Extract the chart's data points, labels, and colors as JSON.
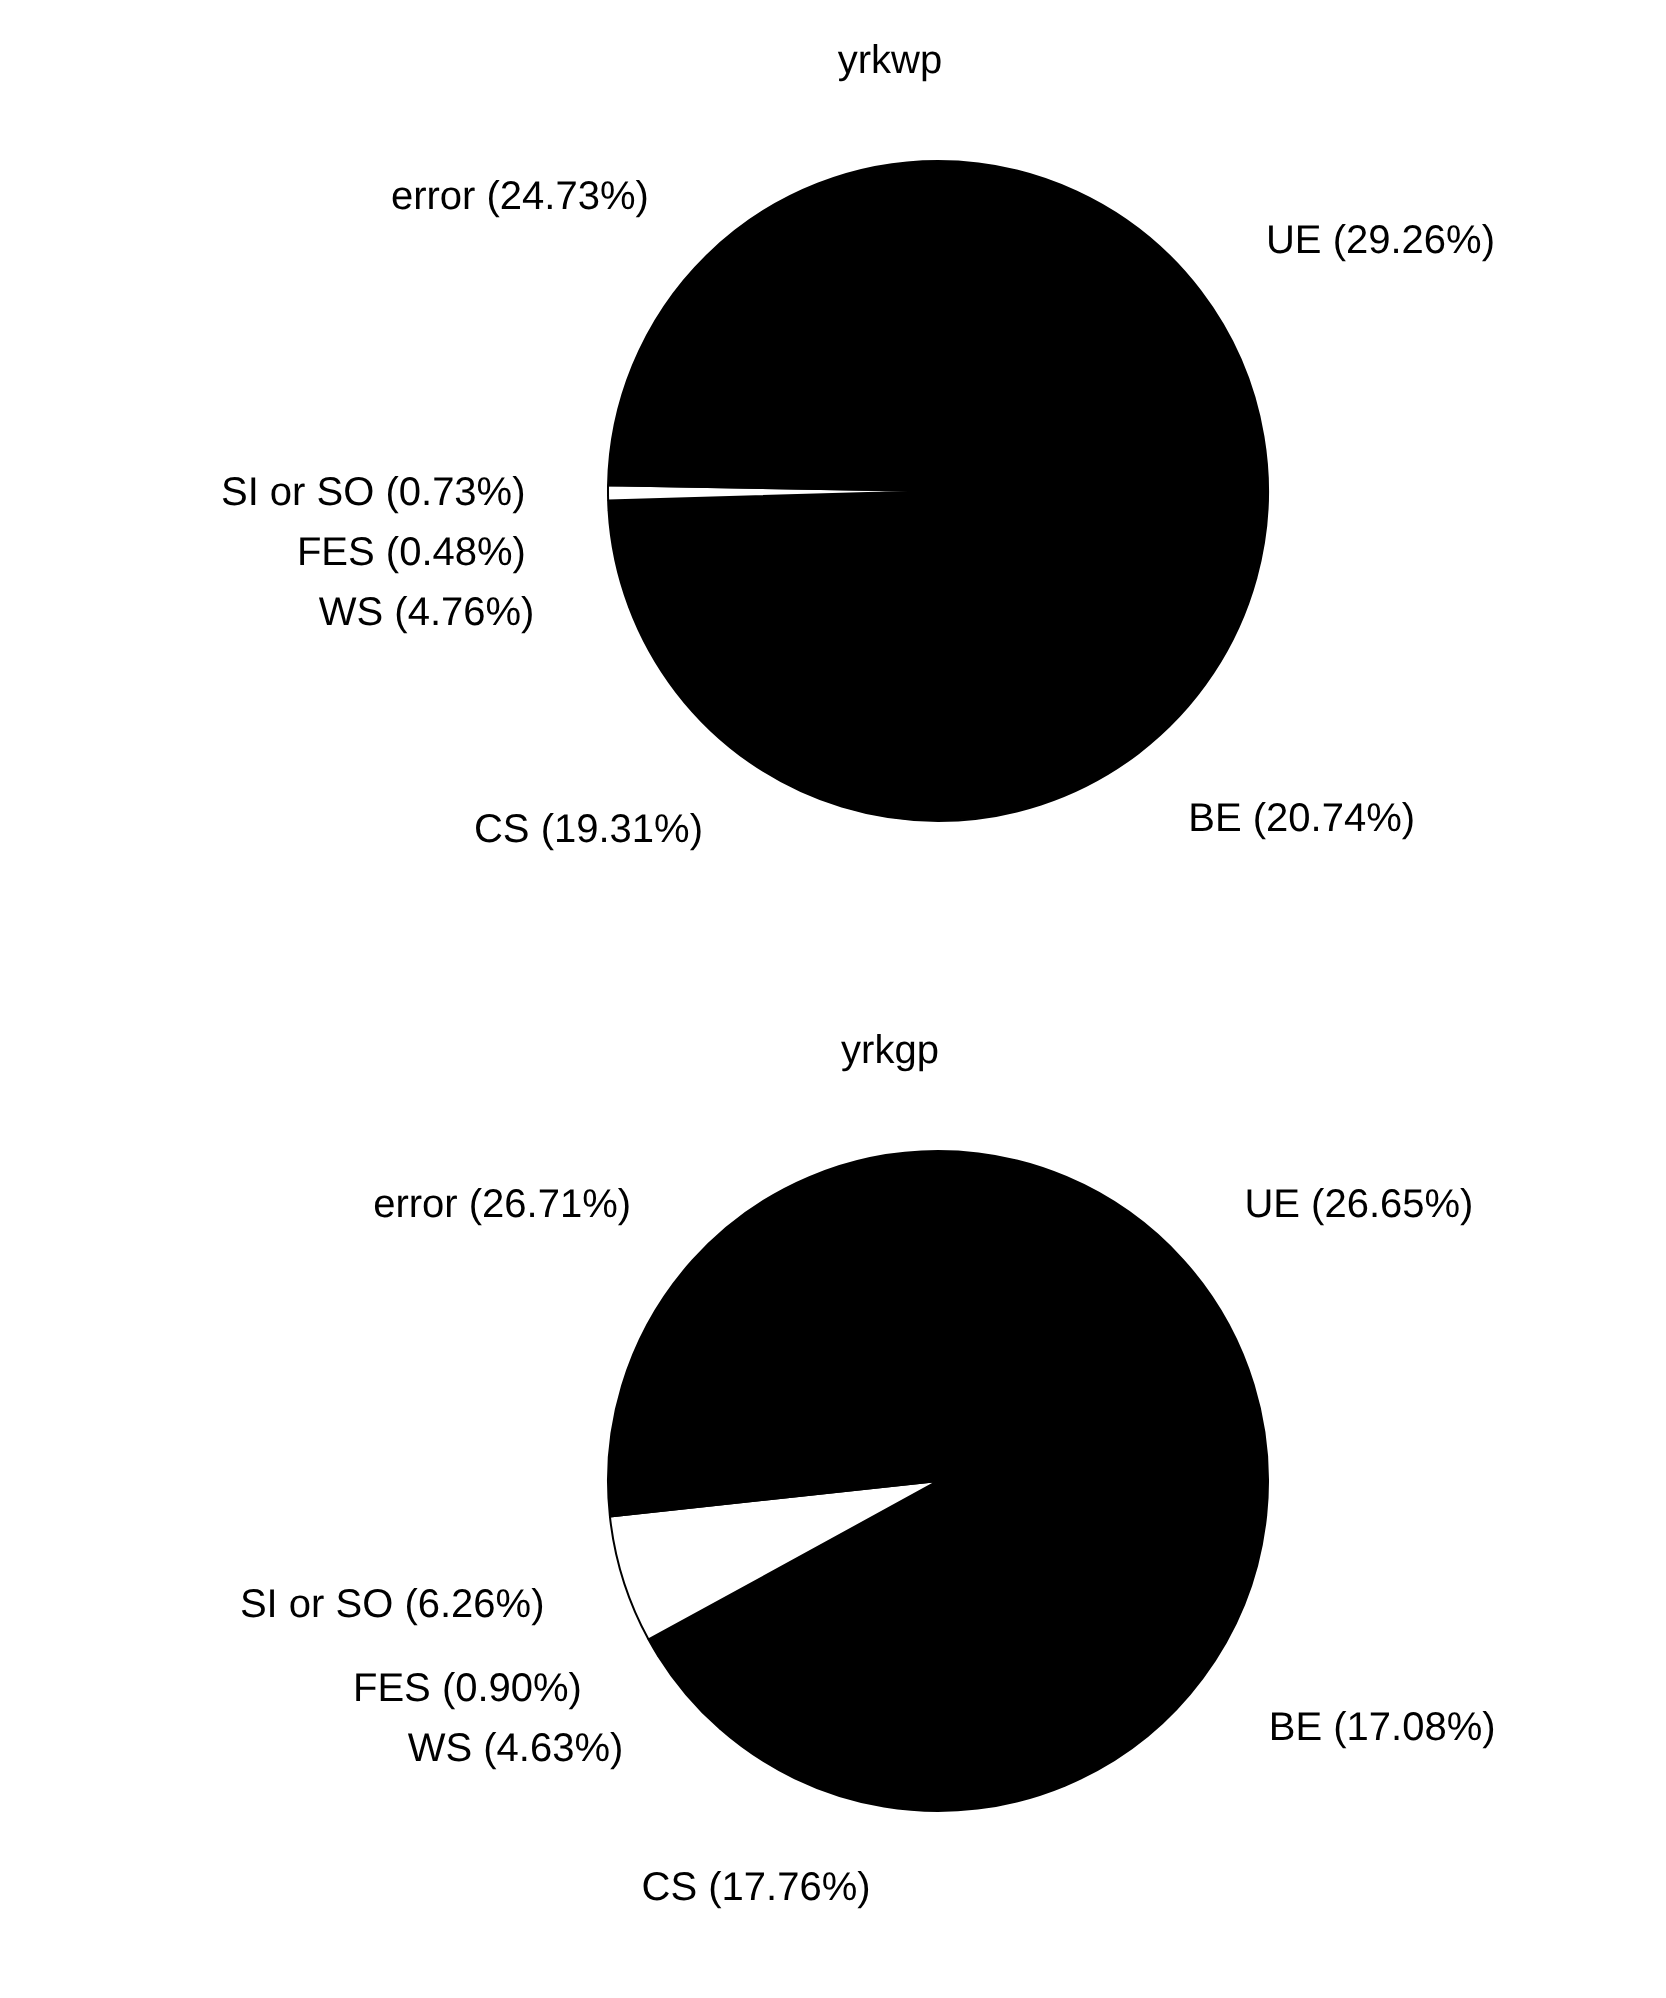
{
  "chart_data": [
    {
      "type": "pie",
      "title": "yrkwp",
      "categories": [
        "UE",
        "BE",
        "CS",
        "WS",
        "FES",
        "SI or SO",
        "error"
      ],
      "values": [
        29.26,
        20.74,
        19.31,
        4.76,
        0.48,
        0.73,
        24.73
      ],
      "colors": [
        "#000000",
        "#000000",
        "#000000",
        "#000000",
        "#000000",
        "#ffffff",
        "#000000"
      ],
      "value_labels": [
        "(29.26%)",
        "(20.74%)",
        "(19.31%)",
        "(4.76%)",
        "(0.48%)",
        "(0.73%)",
        "(24.73%)"
      ]
    },
    {
      "type": "pie",
      "title": "yrkgp",
      "categories": [
        "UE",
        "BE",
        "CS",
        "WS",
        "FES",
        "SI or SO",
        "error"
      ],
      "values": [
        26.65,
        17.08,
        17.76,
        4.63,
        0.9,
        6.26,
        26.71
      ],
      "colors": [
        "#000000",
        "#000000",
        "#000000",
        "#000000",
        "#000000",
        "#ffffff",
        "#000000"
      ],
      "value_labels": [
        "(26.65%)",
        "(17.08%)",
        "(17.76%)",
        "(4.63%)",
        "(0.90%)",
        "(6.26%)",
        "(26.71%)"
      ]
    }
  ]
}
